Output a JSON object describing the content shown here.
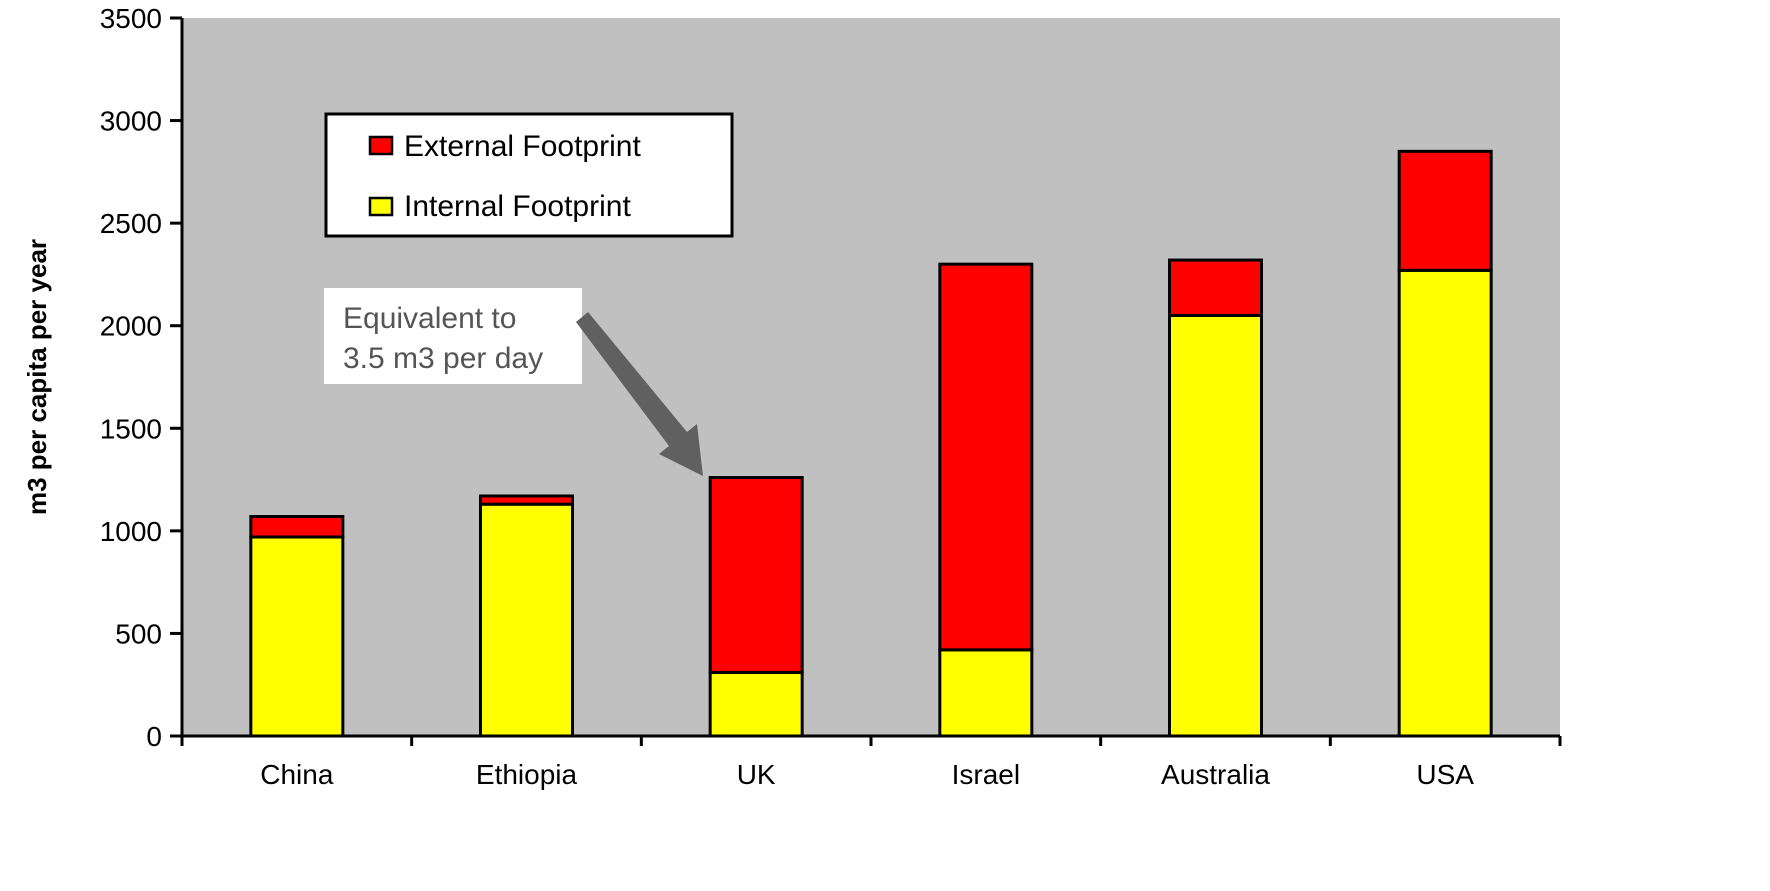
{
  "chart_data": {
    "type": "bar",
    "stacked": true,
    "categories": [
      "China",
      "Ethiopia",
      "UK",
      "Israel",
      "Australia",
      "USA"
    ],
    "series": [
      {
        "name": "Internal Footprint",
        "color": "#ffff00",
        "values": [
          970,
          1130,
          310,
          420,
          2050,
          2270
        ]
      },
      {
        "name": "External Footprint",
        "color": "#ff0000",
        "values": [
          100,
          40,
          950,
          1880,
          270,
          580
        ]
      }
    ],
    "legend_order": [
      "External Footprint",
      "Internal Footprint"
    ],
    "ylabel": "m3 per capita per year",
    "ylim": [
      0,
      3500
    ],
    "yticks": [
      "0",
      "500",
      "1000",
      "1500",
      "2000",
      "2500",
      "3000",
      "3500"
    ],
    "plot_background": "#c0c0c0",
    "grid": false,
    "legend_position": "top-left",
    "annotation": {
      "lines": [
        "Equivalent to",
        "3.5 m3 per day"
      ],
      "points_to": "UK"
    }
  }
}
